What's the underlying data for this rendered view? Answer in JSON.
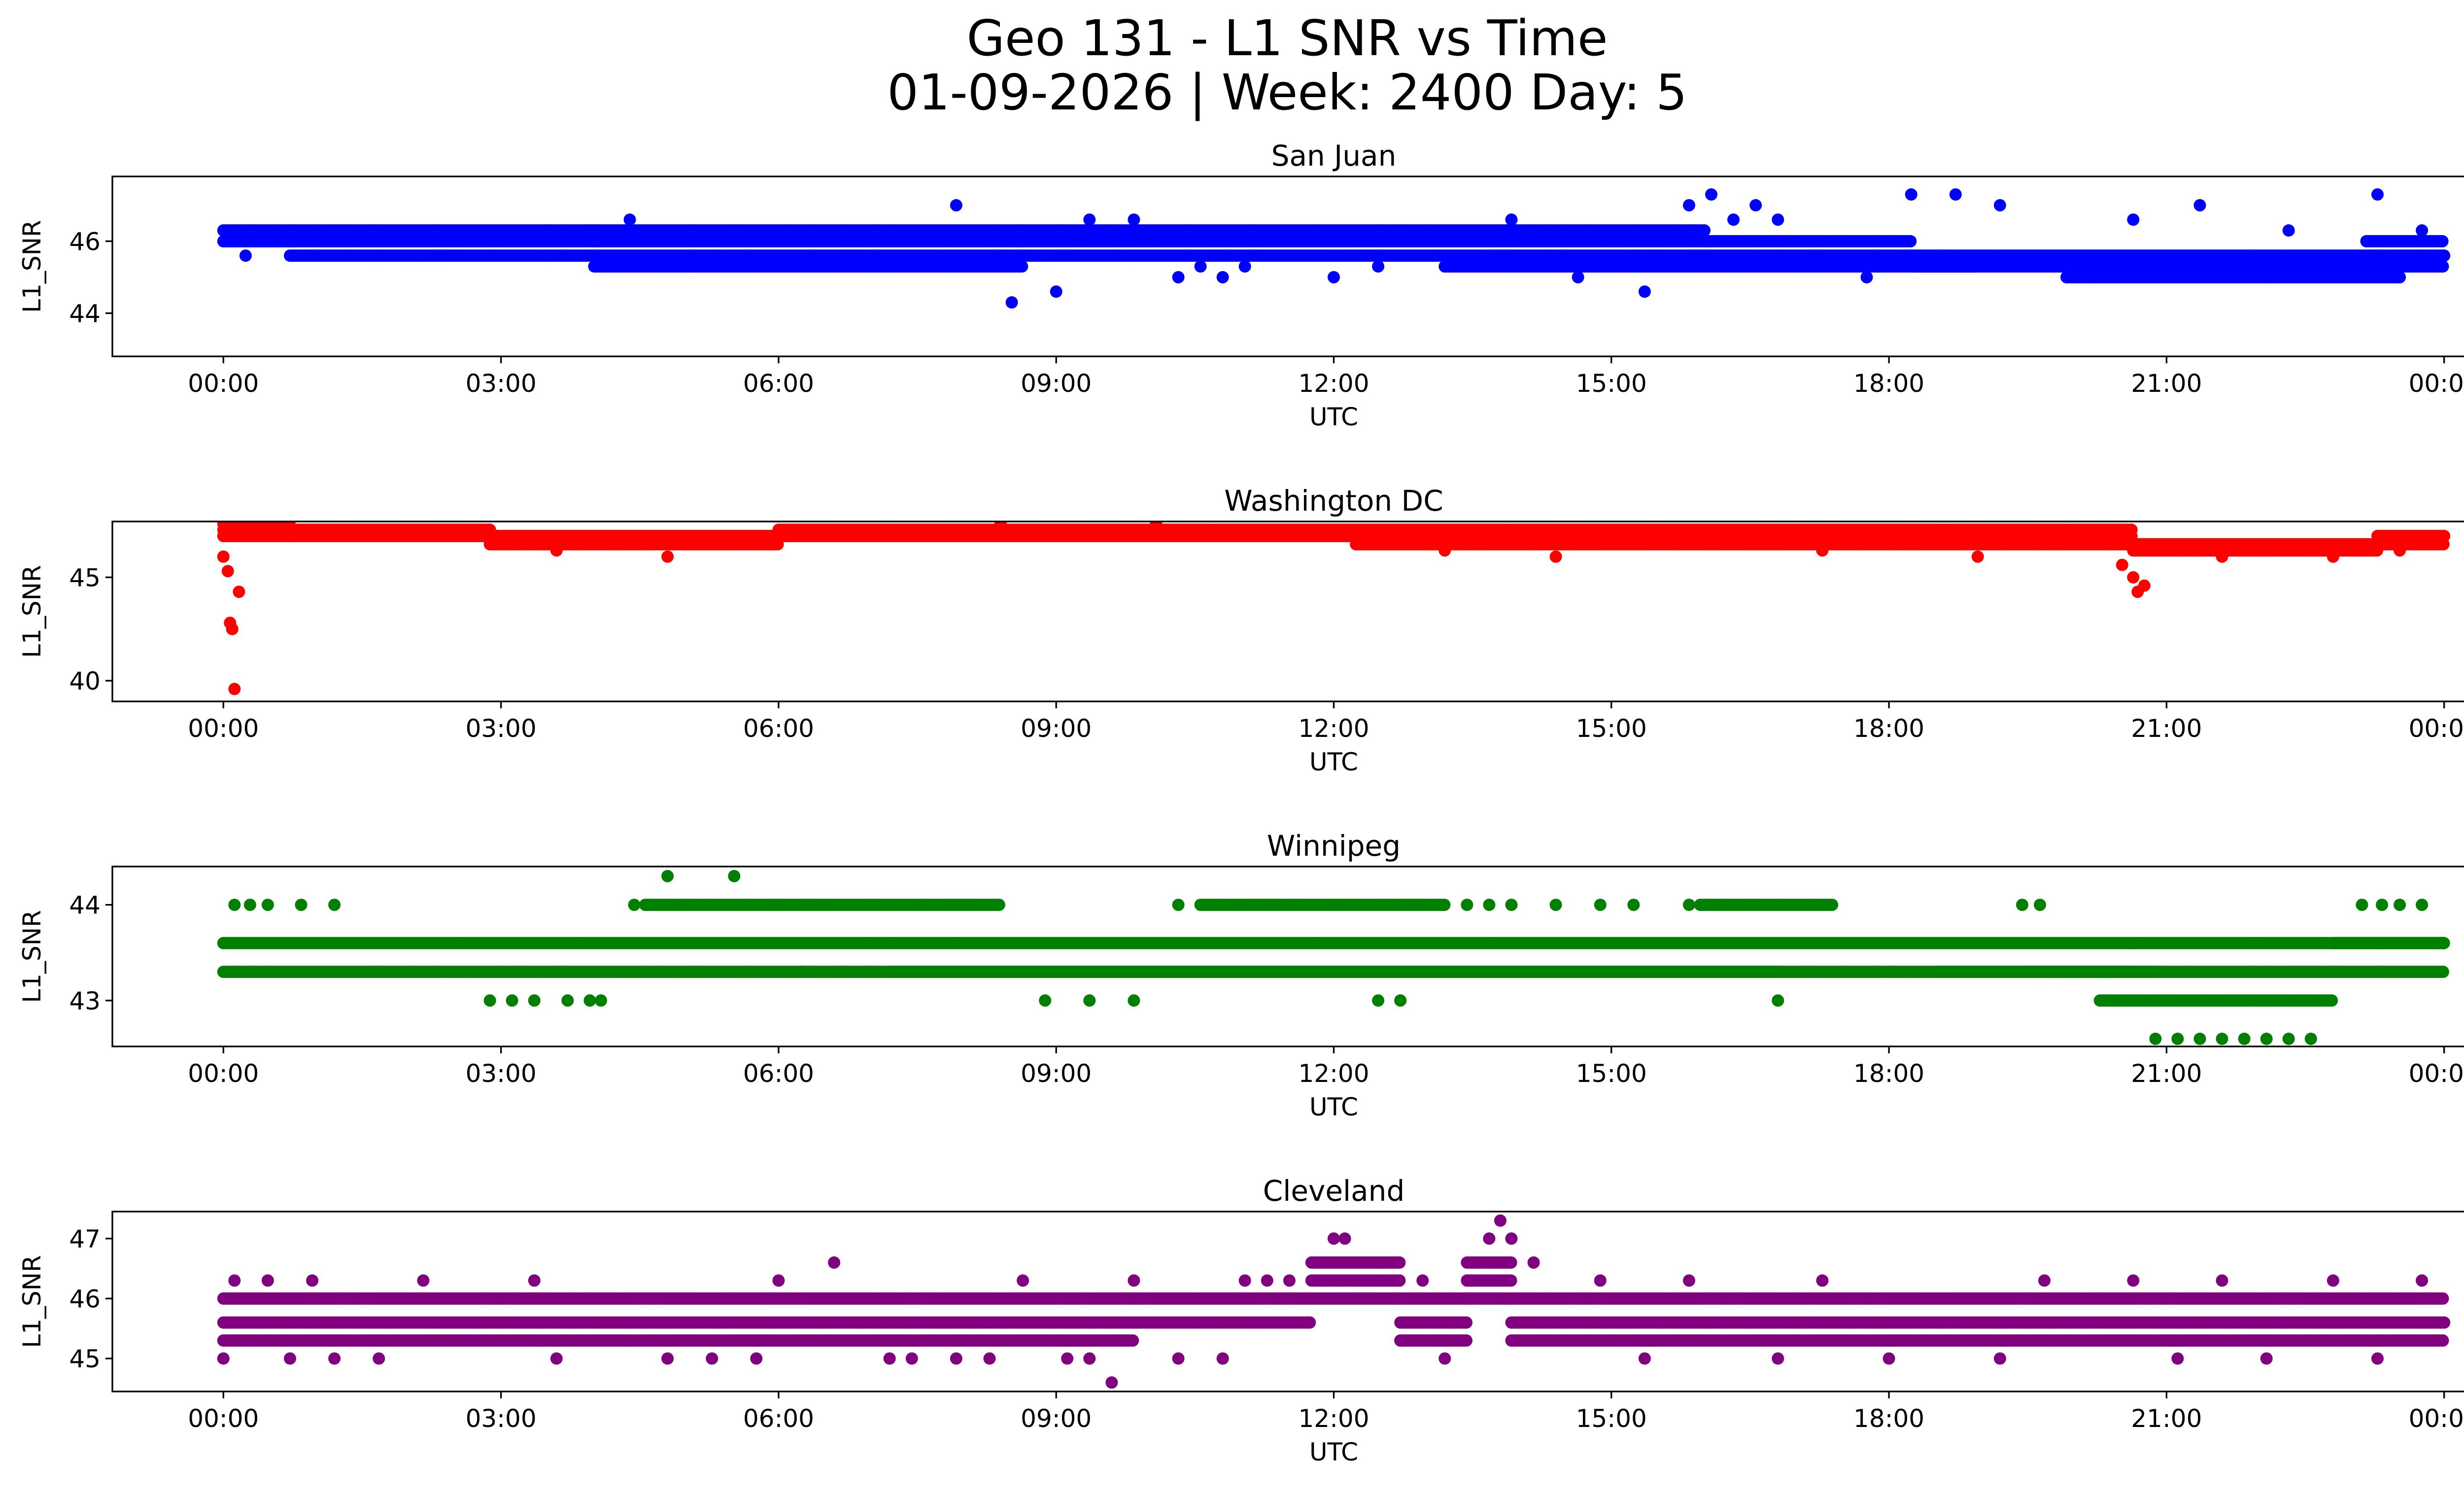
{
  "chart_data": {
    "title": "Geo 131 - L1 SNR vs Time",
    "subtitle": "01-09-2026 | Week: 2400 Day: 5",
    "type": "scatter",
    "x_ticks": [
      "00:00",
      "03:00",
      "06:00",
      "09:00",
      "12:00",
      "15:00",
      "18:00",
      "21:00",
      "00:00"
    ],
    "xlabel": "UTC",
    "ylabel": "L1_SNR",
    "xlim": [
      -0.05,
      1.05
    ],
    "panels": [
      {
        "station": "San Juan",
        "color": "#0000ff",
        "ylim": [
          42.8,
          47.8
        ],
        "yticks": [
          44,
          46
        ],
        "y_tick_labels": [
          "44",
          "46"
        ],
        "segments": [
          {
            "x0": 0.0,
            "x1": 0.03,
            "levels": [
              46.0,
              46.3
            ],
            "spacing": 0.0009
          },
          {
            "x0": 0.03,
            "x1": 0.167,
            "levels": [
              45.6,
              46.0,
              46.3
            ],
            "spacing": 0.0009
          },
          {
            "x0": 0.167,
            "x1": 0.36,
            "levels": [
              45.3,
              45.6,
              46.0,
              46.3
            ],
            "spacing": 0.0009
          },
          {
            "x0": 0.36,
            "x1": 0.667,
            "levels": [
              45.6,
              46.0,
              46.3
            ],
            "spacing": 0.0009
          },
          {
            "x0": 0.667,
            "x1": 0.76,
            "levels": [
              45.6,
              46.0
            ],
            "spacing": 0.0009
          },
          {
            "x0": 0.76,
            "x1": 1.0,
            "levels": [
              45.3,
              45.6
            ],
            "spacing": 0.0009
          },
          {
            "x0": 0.83,
            "x1": 0.98,
            "levels": [
              45.0
            ],
            "spacing": 0.0009
          },
          {
            "x0": 0.55,
            "x1": 0.79,
            "levels": [
              45.3
            ],
            "spacing": 0.0009
          },
          {
            "x0": 0.965,
            "x1": 1.0,
            "levels": [
              46.0
            ],
            "spacing": 0.0009
          }
        ],
        "scatter": [
          {
            "x": 0.01,
            "y": 45.6
          },
          {
            "x": 0.1,
            "y": 45.6
          },
          {
            "x": 0.145,
            "y": 46.3
          },
          {
            "x": 0.163,
            "y": 46.3
          },
          {
            "x": 0.183,
            "y": 46.6
          },
          {
            "x": 0.2,
            "y": 45.3
          },
          {
            "x": 0.21,
            "y": 45.3
          },
          {
            "x": 0.33,
            "y": 47.0
          },
          {
            "x": 0.355,
            "y": 44.3
          },
          {
            "x": 0.375,
            "y": 44.6
          },
          {
            "x": 0.39,
            "y": 46.6
          },
          {
            "x": 0.41,
            "y": 46.6
          },
          {
            "x": 0.43,
            "y": 45.0
          },
          {
            "x": 0.44,
            "y": 45.3
          },
          {
            "x": 0.45,
            "y": 45.0
          },
          {
            "x": 0.46,
            "y": 45.3
          },
          {
            "x": 0.5,
            "y": 45.0
          },
          {
            "x": 0.52,
            "y": 45.3
          },
          {
            "x": 0.58,
            "y": 46.6
          },
          {
            "x": 0.6,
            "y": 45.3
          },
          {
            "x": 0.61,
            "y": 45.0
          },
          {
            "x": 0.64,
            "y": 44.6
          },
          {
            "x": 0.66,
            "y": 47.0
          },
          {
            "x": 0.67,
            "y": 47.3
          },
          {
            "x": 0.68,
            "y": 46.6
          },
          {
            "x": 0.69,
            "y": 47.0
          },
          {
            "x": 0.7,
            "y": 46.6
          },
          {
            "x": 0.72,
            "y": 45.3
          },
          {
            "x": 0.74,
            "y": 45.0
          },
          {
            "x": 0.76,
            "y": 47.3
          },
          {
            "x": 0.78,
            "y": 47.3
          },
          {
            "x": 0.8,
            "y": 47.0
          },
          {
            "x": 0.82,
            "y": 45.3
          },
          {
            "x": 0.84,
            "y": 45.0
          },
          {
            "x": 0.86,
            "y": 46.6
          },
          {
            "x": 0.87,
            "y": 45.3
          },
          {
            "x": 0.89,
            "y": 47.0
          },
          {
            "x": 0.92,
            "y": 45.0
          },
          {
            "x": 0.93,
            "y": 46.3
          },
          {
            "x": 0.95,
            "y": 45.3
          },
          {
            "x": 0.97,
            "y": 47.3
          },
          {
            "x": 0.98,
            "y": 45.0
          },
          {
            "x": 0.99,
            "y": 46.3
          },
          {
            "x": 1.0,
            "y": 45.6
          }
        ]
      },
      {
        "station": "Washington DC",
        "color": "#ff0000",
        "ylim": [
          39.0,
          47.7
        ],
        "yticks": [
          40,
          45
        ],
        "y_tick_labels": [
          "40",
          "45"
        ],
        "segments": [
          {
            "x0": 0.0,
            "x1": 0.03,
            "levels": [
              47.0,
              47.3,
              47.6
            ],
            "spacing": 0.0009
          },
          {
            "x0": 0.03,
            "x1": 0.12,
            "levels": [
              47.0,
              47.3
            ],
            "spacing": 0.0009
          },
          {
            "x0": 0.12,
            "x1": 0.25,
            "levels": [
              46.6,
              47.0
            ],
            "spacing": 0.0009
          },
          {
            "x0": 0.25,
            "x1": 0.51,
            "levels": [
              47.0,
              47.3
            ],
            "spacing": 0.0009
          },
          {
            "x0": 0.51,
            "x1": 0.86,
            "levels": [
              46.6,
              47.0,
              47.3
            ],
            "spacing": 0.0009
          },
          {
            "x0": 0.86,
            "x1": 0.97,
            "levels": [
              46.3,
              46.6
            ],
            "spacing": 0.0009
          },
          {
            "x0": 0.97,
            "x1": 1.0,
            "levels": [
              46.6,
              47.0
            ],
            "spacing": 0.0009
          }
        ],
        "scatter": [
          {
            "x": 0.0,
            "y": 46.0
          },
          {
            "x": 0.002,
            "y": 45.3
          },
          {
            "x": 0.003,
            "y": 42.8
          },
          {
            "x": 0.004,
            "y": 42.5
          },
          {
            "x": 0.005,
            "y": 39.6
          },
          {
            "x": 0.007,
            "y": 44.3
          },
          {
            "x": 0.15,
            "y": 46.3
          },
          {
            "x": 0.2,
            "y": 46.0
          },
          {
            "x": 0.35,
            "y": 47.6
          },
          {
            "x": 0.42,
            "y": 47.6
          },
          {
            "x": 0.55,
            "y": 46.3
          },
          {
            "x": 0.6,
            "y": 46.0
          },
          {
            "x": 0.72,
            "y": 46.3
          },
          {
            "x": 0.79,
            "y": 46.0
          },
          {
            "x": 0.855,
            "y": 45.6
          },
          {
            "x": 0.86,
            "y": 45.0
          },
          {
            "x": 0.862,
            "y": 44.3
          },
          {
            "x": 0.865,
            "y": 44.6
          },
          {
            "x": 0.9,
            "y": 46.0
          },
          {
            "x": 0.95,
            "y": 46.0
          },
          {
            "x": 0.98,
            "y": 46.3
          },
          {
            "x": 1.0,
            "y": 47.0
          }
        ]
      },
      {
        "station": "Winnipeg",
        "color": "#008000",
        "ylim": [
          42.52,
          44.4
        ],
        "yticks": [
          43,
          44
        ],
        "y_tick_labels": [
          "43",
          "44"
        ],
        "segments": [
          {
            "x0": 0.0,
            "x1": 1.0,
            "levels": [
              43.6
            ],
            "spacing": 0.0009
          },
          {
            "x0": 0.0,
            "x1": 0.86,
            "levels": [
              43.3
            ],
            "spacing": 0.0009
          },
          {
            "x0": 0.19,
            "x1": 0.35,
            "levels": [
              44.0
            ],
            "spacing": 0.0009
          },
          {
            "x0": 0.3,
            "x1": 0.7,
            "levels": [
              43.3
            ],
            "spacing": 0.0009
          },
          {
            "x0": 0.44,
            "x1": 0.55,
            "levels": [
              44.0
            ],
            "spacing": 0.0009
          },
          {
            "x0": 0.665,
            "x1": 0.725,
            "levels": [
              44.0
            ],
            "spacing": 0.0009
          },
          {
            "x0": 0.772,
            "x1": 0.95,
            "levels": [
              43.3
            ],
            "spacing": 0.0009
          },
          {
            "x0": 0.845,
            "x1": 0.95,
            "levels": [
              43.0
            ],
            "spacing": 0.0009
          },
          {
            "x0": 0.81,
            "x1": 0.87,
            "levels": [
              43.3
            ],
            "spacing": 0.0009
          },
          {
            "x0": 0.95,
            "x1": 1.0,
            "levels": [
              43.3,
              43.6
            ],
            "spacing": 0.0009
          }
        ],
        "scatter": [
          {
            "x": 0.005,
            "y": 44.0
          },
          {
            "x": 0.012,
            "y": 44.0
          },
          {
            "x": 0.02,
            "y": 44.0
          },
          {
            "x": 0.035,
            "y": 44.0
          },
          {
            "x": 0.05,
            "y": 44.0
          },
          {
            "x": 0.12,
            "y": 43.0
          },
          {
            "x": 0.14,
            "y": 43.0
          },
          {
            "x": 0.155,
            "y": 43.0
          },
          {
            "x": 0.17,
            "y": 43.0
          },
          {
            "x": 0.13,
            "y": 43.0
          },
          {
            "x": 0.165,
            "y": 43.0
          },
          {
            "x": 0.185,
            "y": 44.0
          },
          {
            "x": 0.2,
            "y": 44.3
          },
          {
            "x": 0.23,
            "y": 44.3
          },
          {
            "x": 0.25,
            "y": 44.0
          },
          {
            "x": 0.26,
            "y": 43.3
          },
          {
            "x": 0.28,
            "y": 43.3
          },
          {
            "x": 0.29,
            "y": 43.3
          },
          {
            "x": 0.31,
            "y": 43.3
          },
          {
            "x": 0.37,
            "y": 43.0
          },
          {
            "x": 0.39,
            "y": 43.0
          },
          {
            "x": 0.41,
            "y": 43.0
          },
          {
            "x": 0.43,
            "y": 44.0
          },
          {
            "x": 0.5,
            "y": 43.3
          },
          {
            "x": 0.52,
            "y": 43.0
          },
          {
            "x": 0.53,
            "y": 43.0
          },
          {
            "x": 0.56,
            "y": 44.0
          },
          {
            "x": 0.57,
            "y": 44.0
          },
          {
            "x": 0.58,
            "y": 44.0
          },
          {
            "x": 0.6,
            "y": 44.0
          },
          {
            "x": 0.62,
            "y": 44.0
          },
          {
            "x": 0.635,
            "y": 44.0
          },
          {
            "x": 0.66,
            "y": 44.0
          },
          {
            "x": 0.7,
            "y": 43.0
          },
          {
            "x": 0.75,
            "y": 43.3
          },
          {
            "x": 0.79,
            "y": 43.3
          },
          {
            "x": 0.81,
            "y": 44.0
          },
          {
            "x": 0.818,
            "y": 44.0
          },
          {
            "x": 0.86,
            "y": 43.6
          },
          {
            "x": 0.87,
            "y": 42.6
          },
          {
            "x": 0.88,
            "y": 42.6
          },
          {
            "x": 0.89,
            "y": 42.6
          },
          {
            "x": 0.9,
            "y": 42.6
          },
          {
            "x": 0.91,
            "y": 42.6
          },
          {
            "x": 0.92,
            "y": 42.6
          },
          {
            "x": 0.93,
            "y": 42.6
          },
          {
            "x": 0.94,
            "y": 42.6
          },
          {
            "x": 0.963,
            "y": 44.0
          },
          {
            "x": 0.972,
            "y": 44.0
          },
          {
            "x": 0.98,
            "y": 44.0
          },
          {
            "x": 0.99,
            "y": 44.0
          }
        ]
      },
      {
        "station": "Cleveland",
        "color": "#800080",
        "ylim": [
          44.45,
          47.45
        ],
        "yticks": [
          45,
          46,
          47
        ],
        "y_tick_labels": [
          "45",
          "46",
          "47"
        ],
        "segments": [
          {
            "x0": 0.0,
            "x1": 0.41,
            "levels": [
              45.3,
              45.6,
              46.0
            ],
            "spacing": 0.0009
          },
          {
            "x0": 0.41,
            "x1": 0.49,
            "levels": [
              45.6,
              46.0
            ],
            "spacing": 0.0009
          },
          {
            "x0": 0.49,
            "x1": 0.53,
            "levels": [
              46.0,
              46.3,
              46.6
            ],
            "spacing": 0.0009
          },
          {
            "x0": 0.53,
            "x1": 0.56,
            "levels": [
              45.3,
              45.6,
              46.0
            ],
            "spacing": 0.0009
          },
          {
            "x0": 0.56,
            "x1": 0.58,
            "levels": [
              46.0,
              46.3,
              46.6
            ],
            "spacing": 0.0009
          },
          {
            "x0": 0.58,
            "x1": 1.0,
            "levels": [
              45.3,
              45.6,
              46.0
            ],
            "spacing": 0.0009
          }
        ],
        "scatter": [
          {
            "x": 0.0,
            "y": 45.0
          },
          {
            "x": 0.005,
            "y": 46.3
          },
          {
            "x": 0.02,
            "y": 46.3
          },
          {
            "x": 0.03,
            "y": 45.0
          },
          {
            "x": 0.04,
            "y": 46.3
          },
          {
            "x": 0.05,
            "y": 45.0
          },
          {
            "x": 0.07,
            "y": 45.0
          },
          {
            "x": 0.09,
            "y": 46.3
          },
          {
            "x": 0.11,
            "y": 45.3
          },
          {
            "x": 0.14,
            "y": 46.3
          },
          {
            "x": 0.15,
            "y": 45.0
          },
          {
            "x": 0.2,
            "y": 45.0
          },
          {
            "x": 0.22,
            "y": 45.0
          },
          {
            "x": 0.24,
            "y": 45.0
          },
          {
            "x": 0.25,
            "y": 46.3
          },
          {
            "x": 0.275,
            "y": 46.6
          },
          {
            "x": 0.3,
            "y": 45.0
          },
          {
            "x": 0.31,
            "y": 45.0
          },
          {
            "x": 0.33,
            "y": 45.0
          },
          {
            "x": 0.345,
            "y": 45.0
          },
          {
            "x": 0.36,
            "y": 46.3
          },
          {
            "x": 0.38,
            "y": 45.0
          },
          {
            "x": 0.39,
            "y": 45.0
          },
          {
            "x": 0.4,
            "y": 44.6
          },
          {
            "x": 0.41,
            "y": 46.3
          },
          {
            "x": 0.43,
            "y": 45.0
          },
          {
            "x": 0.45,
            "y": 45.0
          },
          {
            "x": 0.46,
            "y": 46.3
          },
          {
            "x": 0.47,
            "y": 46.3
          },
          {
            "x": 0.48,
            "y": 46.3
          },
          {
            "x": 0.5,
            "y": 47.0
          },
          {
            "x": 0.505,
            "y": 47.0
          },
          {
            "x": 0.52,
            "y": 46.6
          },
          {
            "x": 0.54,
            "y": 46.3
          },
          {
            "x": 0.55,
            "y": 45.0
          },
          {
            "x": 0.57,
            "y": 47.0
          },
          {
            "x": 0.575,
            "y": 47.3
          },
          {
            "x": 0.58,
            "y": 47.0
          },
          {
            "x": 0.59,
            "y": 46.6
          },
          {
            "x": 0.62,
            "y": 46.3
          },
          {
            "x": 0.64,
            "y": 45.0
          },
          {
            "x": 0.66,
            "y": 46.3
          },
          {
            "x": 0.7,
            "y": 45.0
          },
          {
            "x": 0.72,
            "y": 46.3
          },
          {
            "x": 0.75,
            "y": 45.0
          },
          {
            "x": 0.8,
            "y": 45.0
          },
          {
            "x": 0.82,
            "y": 46.3
          },
          {
            "x": 0.86,
            "y": 46.3
          },
          {
            "x": 0.88,
            "y": 45.0
          },
          {
            "x": 0.9,
            "y": 46.3
          },
          {
            "x": 0.92,
            "y": 45.0
          },
          {
            "x": 0.95,
            "y": 46.3
          },
          {
            "x": 0.97,
            "y": 45.0
          },
          {
            "x": 0.99,
            "y": 46.3
          },
          {
            "x": 1.0,
            "y": 45.6
          }
        ]
      }
    ]
  }
}
